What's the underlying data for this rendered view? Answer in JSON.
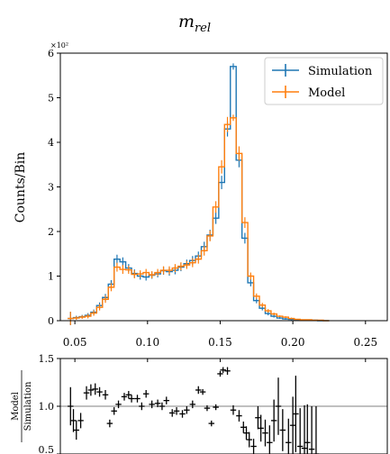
{
  "chart_data": [
    {
      "type": "step",
      "title_main": "m",
      "title_sub": "rel",
      "ylabel": "Counts/Bin",
      "y_multiplier": "×10²",
      "xlim": [
        0.04,
        0.265
      ],
      "ylim": [
        0,
        6
      ],
      "x_ticks": [
        0.05,
        0.1,
        0.15,
        0.2,
        0.25
      ],
      "x_tick_labels": [
        "0.05",
        "0.10",
        "0.15",
        "0.20",
        "0.25"
      ],
      "y_ticks": [
        0,
        1,
        2,
        3,
        4,
        5,
        6
      ],
      "y_tick_labels": [
        "0",
        "1",
        "2",
        "3",
        "4",
        "5",
        "6"
      ],
      "legend_position": "top-right",
      "colors": {
        "simulation": "#1f77b4",
        "model": "#ff7f0e"
      },
      "x_start": 0.045,
      "bin_width": 0.004,
      "series": [
        {
          "name": "Simulation",
          "values": [
            0.05,
            0.07,
            0.09,
            0.12,
            0.19,
            0.34,
            0.52,
            0.82,
            1.38,
            1.32,
            1.18,
            1.06,
            1.0,
            0.98,
            1.02,
            1.05,
            1.12,
            1.1,
            1.13,
            1.2,
            1.28,
            1.35,
            1.45,
            1.66,
            1.92,
            2.3,
            3.1,
            4.3,
            5.7,
            3.6,
            1.85,
            0.85,
            0.45,
            0.28,
            0.16,
            0.1,
            0.06,
            0.04,
            0.03,
            0.02,
            0.01,
            0.01,
            0.01,
            0.0,
            0.0
          ],
          "errors": [
            0.15,
            0.04,
            0.04,
            0.05,
            0.06,
            0.07,
            0.08,
            0.09,
            0.1,
            0.1,
            0.09,
            0.09,
            0.08,
            0.08,
            0.08,
            0.08,
            0.09,
            0.09,
            0.09,
            0.09,
            0.09,
            0.1,
            0.1,
            0.11,
            0.12,
            0.13,
            0.15,
            0.17,
            0.07,
            0.16,
            0.12,
            0.08,
            0.06,
            0.05,
            0.04,
            0.03,
            0.02,
            0.02,
            0.02,
            0.01,
            0.01,
            0.01,
            0.01,
            0.0,
            0.0
          ]
        },
        {
          "name": "Model",
          "values": [
            0.05,
            0.06,
            0.08,
            0.1,
            0.17,
            0.3,
            0.48,
            0.75,
            1.2,
            1.15,
            1.14,
            1.04,
            1.05,
            1.08,
            1.03,
            1.08,
            1.13,
            1.13,
            1.18,
            1.22,
            1.25,
            1.3,
            1.38,
            1.57,
            1.9,
            2.55,
            3.45,
            4.4,
            4.55,
            3.75,
            2.2,
            1.0,
            0.55,
            0.35,
            0.22,
            0.15,
            0.1,
            0.08,
            0.05,
            0.03,
            0.02,
            0.02,
            0.01,
            0.01,
            0.0
          ],
          "errors": [
            0.15,
            0.04,
            0.04,
            0.05,
            0.06,
            0.07,
            0.08,
            0.09,
            0.1,
            0.1,
            0.09,
            0.09,
            0.08,
            0.08,
            0.08,
            0.08,
            0.09,
            0.09,
            0.09,
            0.09,
            0.09,
            0.1,
            0.1,
            0.11,
            0.12,
            0.13,
            0.15,
            0.17,
            0.07,
            0.16,
            0.12,
            0.08,
            0.06,
            0.05,
            0.04,
            0.03,
            0.02,
            0.02,
            0.02,
            0.01,
            0.01,
            0.01,
            0.01,
            0.0,
            0.0
          ]
        }
      ]
    },
    {
      "type": "scatter",
      "ylabel_numerator": "Model",
      "ylabel_denominator": "Simulation",
      "ylim": [
        0.5,
        1.5
      ],
      "y_ticks": [
        0.5,
        1.0,
        1.5
      ],
      "y_tick_labels": [
        "0.5",
        "1.0",
        "1.5"
      ],
      "reference_line": 1.0,
      "x": [
        0.047,
        0.049,
        0.051,
        0.054,
        0.058,
        0.061,
        0.064,
        0.067,
        0.071,
        0.074,
        0.077,
        0.08,
        0.084,
        0.087,
        0.089,
        0.093,
        0.096,
        0.099,
        0.103,
        0.107,
        0.11,
        0.113,
        0.117,
        0.12,
        0.124,
        0.127,
        0.131,
        0.135,
        0.138,
        0.141,
        0.144,
        0.147,
        0.15,
        0.152,
        0.155,
        0.159,
        0.163,
        0.166,
        0.168,
        0.17,
        0.173,
        0.176,
        0.178,
        0.181,
        0.184,
        0.187,
        0.19,
        0.193,
        0.197,
        0.2,
        0.202,
        0.205,
        0.208,
        0.21,
        0.213,
        0.216
      ],
      "y": [
        1.0,
        0.85,
        0.75,
        0.85,
        1.14,
        1.17,
        1.18,
        1.15,
        1.12,
        0.82,
        0.95,
        1.02,
        1.1,
        1.12,
        1.08,
        1.08,
        1.0,
        1.13,
        1.02,
        1.03,
        1.0,
        1.06,
        0.93,
        0.95,
        0.92,
        0.96,
        1.02,
        1.17,
        1.15,
        0.98,
        0.82,
        0.99,
        1.34,
        1.38,
        1.37,
        0.96,
        0.9,
        0.78,
        0.72,
        0.65,
        0.58,
        0.88,
        0.77,
        0.72,
        0.62,
        0.85,
        1.0,
        0.75,
        0.62,
        0.8,
        0.92,
        0.58,
        0.56,
        0.62,
        0.55,
        0.5
      ],
      "errors": [
        0.2,
        0.12,
        0.1,
        0.08,
        0.07,
        0.06,
        0.06,
        0.05,
        0.05,
        0.04,
        0.04,
        0.04,
        0.04,
        0.04,
        0.04,
        0.04,
        0.04,
        0.04,
        0.04,
        0.04,
        0.04,
        0.04,
        0.04,
        0.04,
        0.04,
        0.04,
        0.04,
        0.04,
        0.03,
        0.03,
        0.03,
        0.03,
        0.03,
        0.03,
        0.04,
        0.05,
        0.06,
        0.06,
        0.07,
        0.08,
        0.08,
        0.12,
        0.14,
        0.14,
        0.18,
        0.22,
        0.3,
        0.22,
        0.25,
        0.3,
        0.4,
        0.4,
        0.45,
        0.4,
        0.45,
        0.5
      ]
    }
  ]
}
